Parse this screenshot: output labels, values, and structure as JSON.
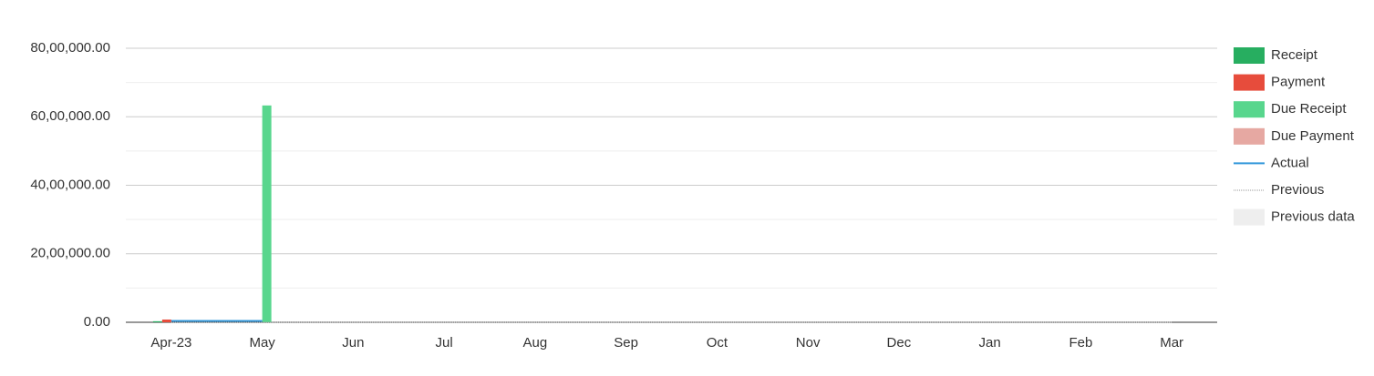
{
  "chart_data": {
    "type": "bar",
    "categories": [
      "Apr-23",
      "May",
      "Jun",
      "Jul",
      "Aug",
      "Sep",
      "Oct",
      "Nov",
      "Dec",
      "Jan",
      "Feb",
      "Mar"
    ],
    "series": [
      {
        "name": "Receipt",
        "type": "bar",
        "color": "#27ae60",
        "values": [
          30000,
          0,
          0,
          0,
          0,
          0,
          0,
          0,
          0,
          0,
          0,
          0
        ]
      },
      {
        "name": "Payment",
        "type": "bar",
        "color": "#e74c3c",
        "values": [
          80000,
          0,
          0,
          0,
          0,
          0,
          0,
          0,
          0,
          0,
          0,
          0
        ]
      },
      {
        "name": "Due Receipt",
        "type": "bar",
        "color": "#58d68d",
        "values": [
          0,
          6330000,
          0,
          0,
          0,
          0,
          0,
          0,
          0,
          0,
          0,
          0
        ]
      },
      {
        "name": "Due Payment",
        "type": "bar",
        "color": "#e6a8a2",
        "values": [
          0,
          0,
          0,
          0,
          0,
          0,
          0,
          0,
          0,
          0,
          0,
          0
        ]
      },
      {
        "name": "Actual",
        "type": "line",
        "color": "#3498db",
        "values": [
          40000,
          40000,
          null,
          null,
          null,
          null,
          null,
          null,
          null,
          null,
          null,
          null
        ]
      },
      {
        "name": "Previous",
        "type": "line",
        "dashed": true,
        "color": "#999999",
        "values": [
          0,
          0,
          0,
          0,
          0,
          0,
          0,
          0,
          0,
          0,
          0,
          0
        ]
      },
      {
        "name": "Previous data",
        "type": "area",
        "color": "#eeeeee",
        "values": [
          0,
          0,
          0,
          0,
          0,
          0,
          0,
          0,
          0,
          0,
          0,
          0
        ]
      }
    ],
    "ylim": [
      0,
      8000000
    ],
    "yticks": [
      {
        "value": 0,
        "label": "0.00"
      },
      {
        "value": 2000000,
        "label": "20,00,000.00"
      },
      {
        "value": 4000000,
        "label": "40,00,000.00"
      },
      {
        "value": 6000000,
        "label": "60,00,000.00"
      },
      {
        "value": 8000000,
        "label": "80,00,000.00"
      }
    ],
    "minor_yticks": [
      1000000,
      3000000,
      5000000,
      7000000
    ],
    "grid": true,
    "legend": "right"
  }
}
